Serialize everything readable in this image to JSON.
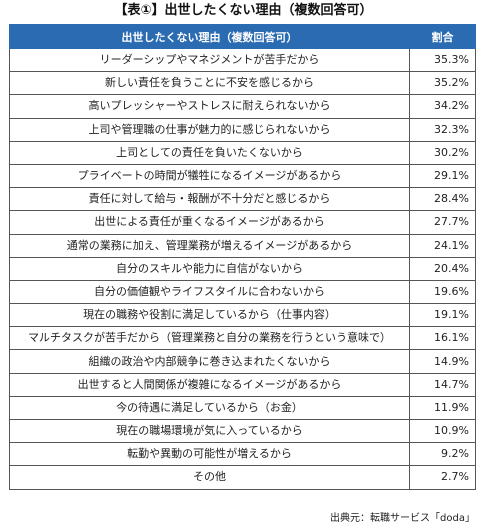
{
  "title": "【表①】出世したくない理由（複数回答可）",
  "table": {
    "header_reason": "出世したくない理由（複数回答可）",
    "header_pct": "割合",
    "rows": [
      {
        "reason": "リーダーシップやマネジメントが苦手だから",
        "pct": "35.3%"
      },
      {
        "reason": "新しい責任を負うことに不安を感じるから",
        "pct": "35.2%"
      },
      {
        "reason": "高いプレッシャーやストレスに耐えられないから",
        "pct": "34.2%"
      },
      {
        "reason": "上司や管理職の仕事が魅力的に感じられないから",
        "pct": "32.3%"
      },
      {
        "reason": "上司としての責任を負いたくないから",
        "pct": "30.2%"
      },
      {
        "reason": "プライベートの時間が犠牲になるイメージがあるから",
        "pct": "29.1%"
      },
      {
        "reason": "責任に対して給与・報酬が不十分だと感じるから",
        "pct": "28.4%"
      },
      {
        "reason": "出世による責任が重くなるイメージがあるから",
        "pct": "27.7%"
      },
      {
        "reason": "通常の業務に加え、管理業務が増えるイメージがあるから",
        "pct": "24.1%"
      },
      {
        "reason": "自分のスキルや能力に自信がないから",
        "pct": "20.4%"
      },
      {
        "reason": "自分の価値観やライフスタイルに合わないから",
        "pct": "19.6%"
      },
      {
        "reason": "現在の職務や役割に満足しているから（仕事内容）",
        "pct": "19.1%"
      },
      {
        "reason": "マルチタスクが苦手だから（管理業務と自分の業務を行うという意味で）",
        "pct": "16.1%"
      },
      {
        "reason": "組織の政治や内部競争に巻き込まれたくないから",
        "pct": "14.9%"
      },
      {
        "reason": "出世すると人間関係が複雑になるイメージがあるから",
        "pct": "14.7%"
      },
      {
        "reason": "今の待遇に満足しているから（お金）",
        "pct": "11.9%"
      },
      {
        "reason": "現在の職場環境が気に入っているから",
        "pct": "10.9%"
      },
      {
        "reason": "転勤や異動の可能性が増えるから",
        "pct": "9.2%"
      },
      {
        "reason": "その他",
        "pct": "2.7%"
      }
    ]
  },
  "source": "出典元：転職サービス「doda」",
  "colors": {
    "header_bg": "#2b6bb2",
    "header_text": "#ffffff",
    "border": "#555555"
  }
}
